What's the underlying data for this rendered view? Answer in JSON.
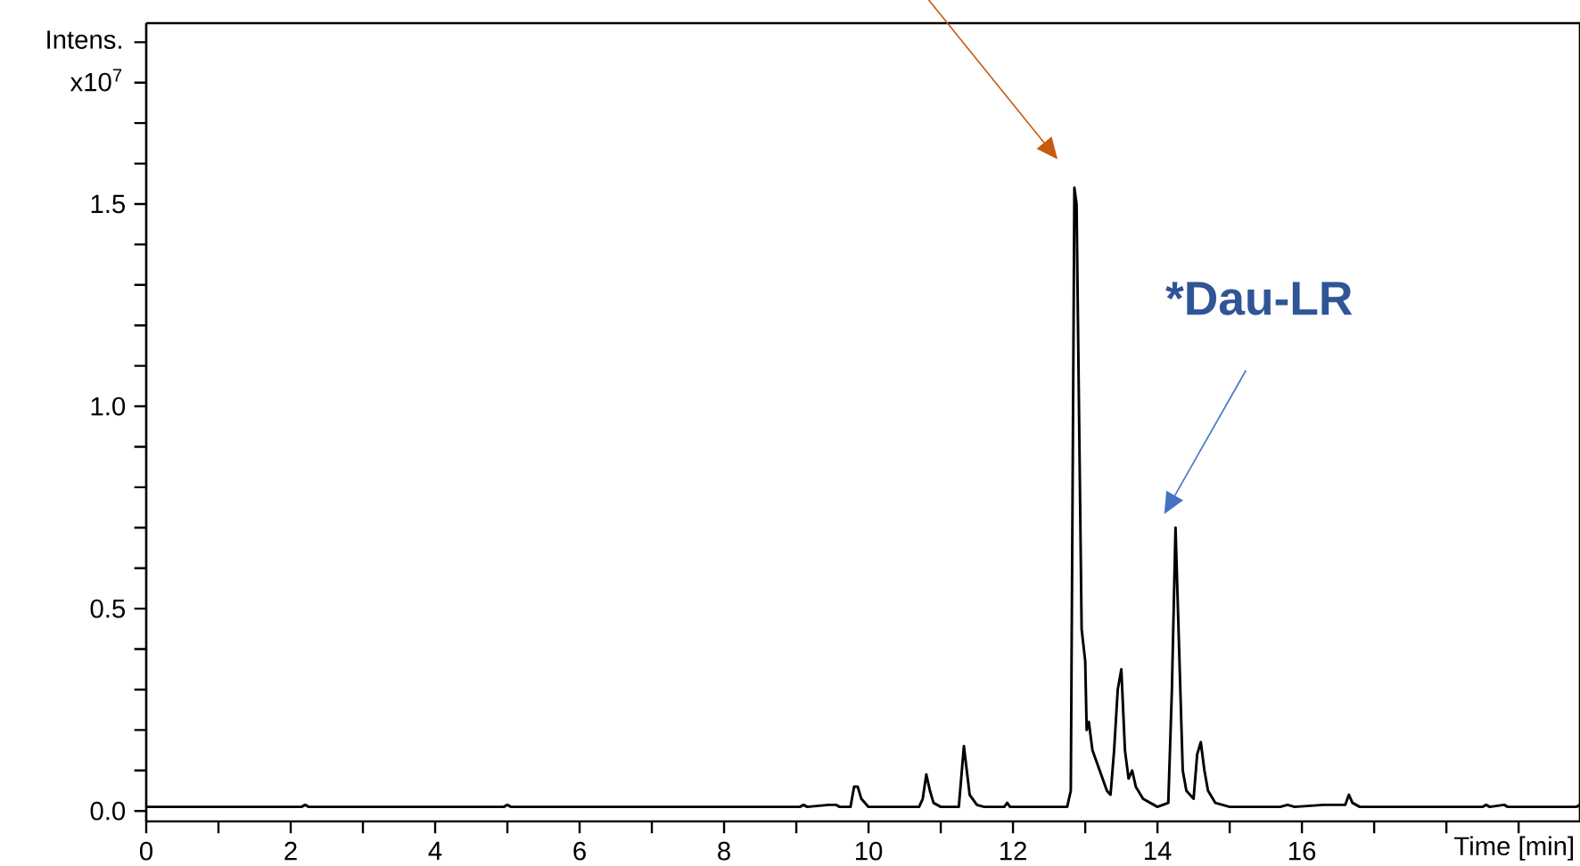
{
  "chart_data": {
    "type": "line",
    "ylabel": "Intens.",
    "xlabel": "Time [min]",
    "annotations": [
      "x10$^{7}$",
      "*Dau-LR"
    ],
    "xlim": [
      0,
      19.85
    ],
    "ylim": [
      -0.026,
      1.947
    ],
    "xticks": [
      0,
      {
        "value": 1,
        "label": null
      },
      2,
      {
        "value": 3,
        "label": null
      },
      4,
      {
        "value": 5,
        "label": null
      },
      6,
      {
        "value": 7,
        "label": null
      },
      8,
      {
        "value": 9,
        "label": null
      },
      10,
      {
        "value": 11,
        "label": null
      },
      12,
      {
        "value": 13,
        "label": null
      },
      14,
      {
        "value": 15,
        "label": null
      },
      16,
      {
        "value": 17,
        "label": null
      },
      {
        "value": 18,
        "label": null
      },
      {
        "value": 19,
        "label": null
      }
    ],
    "yticks": [
      {
        "value": 0,
        "label": "0.0"
      },
      {
        "value": 0.1,
        "label": null
      },
      {
        "value": 0.2,
        "label": null
      },
      {
        "value": 0.3,
        "label": null
      },
      {
        "value": 0.4,
        "label": null
      },
      {
        "value": 0.5,
        "label": "0.5"
      },
      {
        "value": 0.6,
        "label": null
      },
      {
        "value": 0.7,
        "label": null
      },
      {
        "value": 0.8,
        "label": null
      },
      {
        "value": 0.9,
        "label": null
      },
      {
        "value": 1.0,
        "label": "1.0"
      },
      {
        "value": 1.1,
        "label": null
      },
      {
        "value": 1.2,
        "label": null
      },
      {
        "value": 1.3,
        "label": null
      },
      {
        "value": 1.4,
        "label": null
      },
      {
        "value": 1.5,
        "label": "1.5"
      },
      {
        "value": 1.6,
        "label": null
      },
      {
        "value": 1.7,
        "label": null
      },
      {
        "value": 1.8,
        "label": null
      },
      {
        "value": 1.9,
        "label": null
      }
    ],
    "marker": "none",
    "line_style": "solid",
    "series": [
      {
        "color": "#000000",
        "x": [
          0,
          2.15,
          2.2,
          2.25,
          4.95,
          5.0,
          5.05,
          9.05,
          9.1,
          9.15,
          9.45,
          9.55,
          9.6,
          9.75,
          9.8,
          9.85,
          9.9,
          10.0,
          10.7,
          10.75,
          10.8,
          10.85,
          10.9,
          11.0,
          11.25,
          11.32,
          11.4,
          11.5,
          11.6,
          11.88,
          11.92,
          11.96,
          12.75,
          12.8,
          12.85,
          12.88,
          12.92,
          12.95,
          13.0,
          13.02,
          13.05,
          13.1,
          13.2,
          13.3,
          13.35,
          13.4,
          13.45,
          13.5,
          13.55,
          13.6,
          13.65,
          13.7,
          13.8,
          13.9,
          14.0,
          14.15,
          14.2,
          14.25,
          14.3,
          14.35,
          14.4,
          14.5,
          14.55,
          14.6,
          14.65,
          14.7,
          14.8,
          15.0,
          15.7,
          15.8,
          15.9,
          16.3,
          16.6,
          16.65,
          16.7,
          16.8,
          18.5,
          18.55,
          18.6,
          18.8,
          18.85,
          19.8,
          19.85
        ],
        "values": [
          0.01,
          0.01,
          0.015,
          0.01,
          0.01,
          0.015,
          0.01,
          0.01,
          0.015,
          0.01,
          0.015,
          0.015,
          0.01,
          0.01,
          0.06,
          0.06,
          0.03,
          0.01,
          0.01,
          0.03,
          0.09,
          0.05,
          0.02,
          0.01,
          0.01,
          0.16,
          0.04,
          0.015,
          0.01,
          0.01,
          0.02,
          0.01,
          0.01,
          0.05,
          1.54,
          1.5,
          0.9,
          0.45,
          0.37,
          0.2,
          0.22,
          0.15,
          0.1,
          0.05,
          0.04,
          0.15,
          0.3,
          0.35,
          0.15,
          0.08,
          0.1,
          0.06,
          0.03,
          0.02,
          0.01,
          0.02,
          0.3,
          0.7,
          0.4,
          0.1,
          0.05,
          0.03,
          0.14,
          0.17,
          0.1,
          0.05,
          0.02,
          0.01,
          0.01,
          0.015,
          0.01,
          0.015,
          0.015,
          0.04,
          0.02,
          0.01,
          0.01,
          0.015,
          0.01,
          0.015,
          0.01,
          0.01,
          0.015
        ]
      }
    ]
  }
}
